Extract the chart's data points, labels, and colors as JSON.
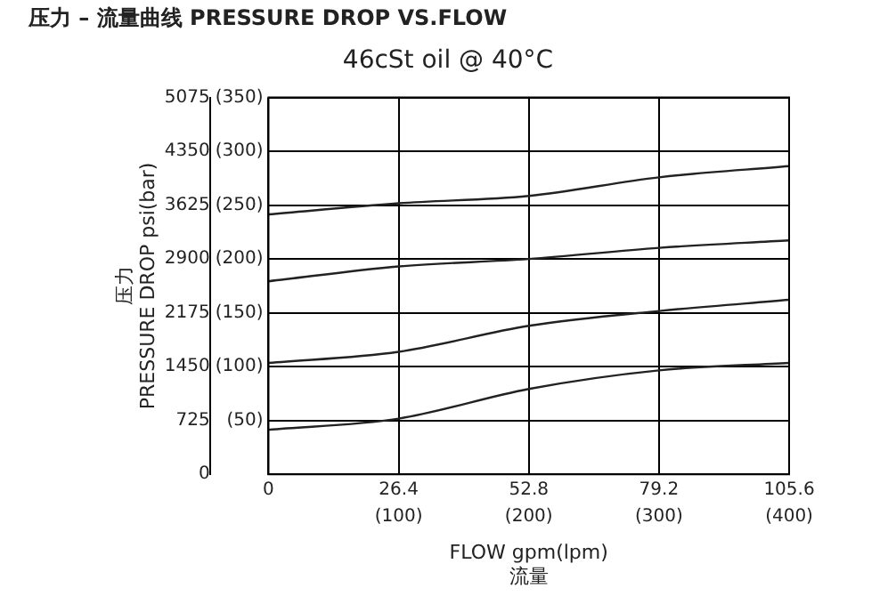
{
  "chart_data": {
    "type": "line",
    "title": "压力 – 流量曲线 PRESSURE DROP VS.FLOW",
    "subtitle": "46cSt oil @ 40°C",
    "xlabel": "FLOW gpm(lpm)\n流量",
    "ylabel": "压力\nPRESSURE DROP psi(bar)",
    "x": [
      0,
      26.4,
      52.8,
      79.2,
      105.6
    ],
    "series": [
      {
        "color": "#222222",
        "values": [
          3500,
          3650,
          3750,
          4000,
          4150
        ]
      },
      {
        "color": "#222222",
        "values": [
          2600,
          2800,
          2900,
          3050,
          3150
        ]
      },
      {
        "color": "#222222",
        "values": [
          1500,
          1650,
          2000,
          2200,
          2350
        ]
      },
      {
        "color": "#222222",
        "values": [
          600,
          750,
          1150,
          1400,
          1500
        ]
      }
    ],
    "xlim": [
      0,
      105.6
    ],
    "xticks": [
      0,
      26.4,
      52.8,
      79.2,
      105.6
    ],
    "x2lim": [
      0,
      400
    ],
    "x2ticks": [
      {
        "value": 100,
        "label": "(100)"
      },
      {
        "value": 200,
        "label": "(200)"
      },
      {
        "value": 300,
        "label": "(300)"
      },
      {
        "value": 400,
        "label": "(400)"
      }
    ],
    "ylim": [
      0,
      5075
    ],
    "yticks": [
      0,
      725,
      1450,
      2175,
      2900,
      3625,
      4350,
      5075
    ],
    "y2lim": [
      0,
      350
    ],
    "y2ticks": [
      {
        "value": 50,
        "label": "(50)"
      },
      {
        "value": 100,
        "label": "(100)"
      },
      {
        "value": 150,
        "label": "(150)"
      },
      {
        "value": 200,
        "label": "(200)"
      },
      {
        "value": 250,
        "label": "(250)"
      },
      {
        "value": 300,
        "label": "(300)"
      },
      {
        "value": 350,
        "label": "(350)"
      }
    ],
    "grid": true,
    "legend": false,
    "marker": "none",
    "line_style": "solid"
  }
}
